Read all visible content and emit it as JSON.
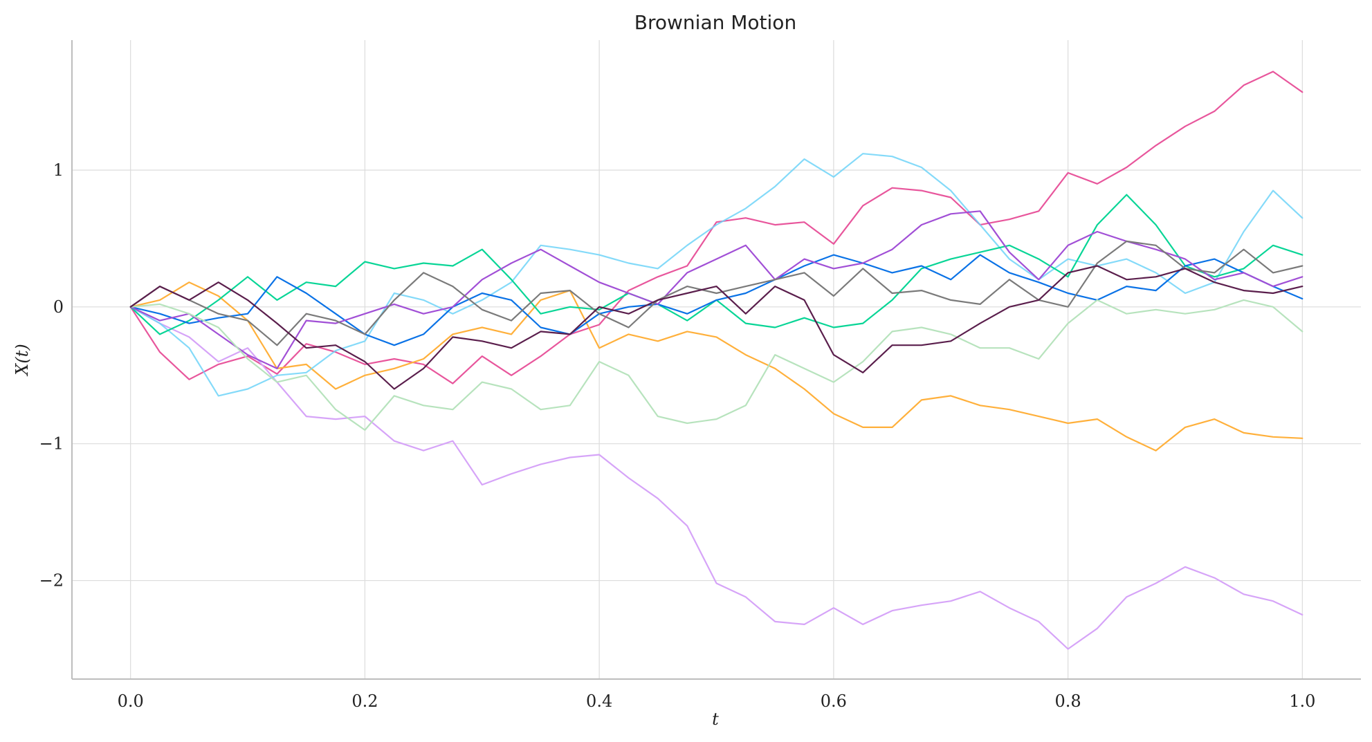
{
  "chart_data": {
    "type": "line",
    "title": "Brownian Motion",
    "xlabel": "t",
    "ylabel": "X(t)",
    "xlim": [
      -0.05,
      1.05
    ],
    "ylim": [
      -2.72,
      1.95
    ],
    "xticks": [
      0.0,
      0.2,
      0.4,
      0.6,
      0.8,
      1.0
    ],
    "xtick_labels": [
      "0.0",
      "0.2",
      "0.4",
      "0.6",
      "0.8",
      "1.0"
    ],
    "yticks": [
      1,
      0,
      -1,
      -2
    ],
    "ytick_labels": [
      "1",
      "0",
      "−1",
      "−2"
    ],
    "grid": true,
    "legend": "none",
    "series": [
      {
        "color": "#e8569c",
        "x": [
          0,
          0.025,
          0.05,
          0.075,
          0.1,
          0.125,
          0.15,
          0.175,
          0.2,
          0.225,
          0.25,
          0.275,
          0.3,
          0.325,
          0.35,
          0.375,
          0.4,
          0.425,
          0.45,
          0.475,
          0.5,
          0.525,
          0.55,
          0.575,
          0.6,
          0.625,
          0.65,
          0.675,
          0.7,
          0.725,
          0.75,
          0.775,
          0.8,
          0.825,
          0.85,
          0.875,
          0.9,
          0.925,
          0.95,
          0.975,
          1.0
        ],
        "y": [
          0,
          -0.33,
          -0.53,
          -0.42,
          -0.36,
          -0.49,
          -0.27,
          -0.33,
          -0.42,
          -0.38,
          -0.42,
          -0.56,
          -0.36,
          -0.5,
          -0.36,
          -0.2,
          -0.13,
          0.12,
          0.22,
          0.3,
          0.62,
          0.65,
          0.6,
          0.62,
          0.46,
          0.74,
          0.87,
          0.85,
          0.8,
          0.6,
          0.64,
          0.7,
          0.98,
          0.9,
          1.02,
          1.18,
          1.32,
          1.43,
          1.62,
          1.72,
          1.57
        ]
      },
      {
        "color": "#d6a4f8",
        "x": [
          0,
          0.025,
          0.05,
          0.075,
          0.1,
          0.125,
          0.15,
          0.175,
          0.2,
          0.225,
          0.25,
          0.275,
          0.3,
          0.325,
          0.35,
          0.375,
          0.4,
          0.425,
          0.45,
          0.475,
          0.5,
          0.525,
          0.55,
          0.575,
          0.6,
          0.625,
          0.65,
          0.675,
          0.7,
          0.725,
          0.75,
          0.775,
          0.8,
          0.825,
          0.85,
          0.875,
          0.9,
          0.925,
          0.95,
          0.975,
          1.0
        ],
        "y": [
          0,
          -0.12,
          -0.22,
          -0.4,
          -0.3,
          -0.55,
          -0.8,
          -0.82,
          -0.8,
          -0.98,
          -1.05,
          -0.98,
          -1.3,
          -1.22,
          -1.15,
          -1.1,
          -1.08,
          -1.25,
          -1.4,
          -1.6,
          -2.02,
          -2.12,
          -2.3,
          -2.32,
          -2.2,
          -2.32,
          -2.22,
          -2.18,
          -2.15,
          -2.08,
          -2.2,
          -2.3,
          -2.5,
          -2.35,
          -2.12,
          -2.02,
          -1.9,
          -1.98,
          -2.1,
          -2.15,
          -2.25
        ]
      },
      {
        "color": "#ffb03b",
        "x": [
          0,
          0.025,
          0.05,
          0.075,
          0.1,
          0.125,
          0.15,
          0.175,
          0.2,
          0.225,
          0.25,
          0.275,
          0.3,
          0.325,
          0.35,
          0.375,
          0.4,
          0.425,
          0.45,
          0.475,
          0.5,
          0.525,
          0.55,
          0.575,
          0.6,
          0.625,
          0.65,
          0.675,
          0.7,
          0.725,
          0.75,
          0.775,
          0.8,
          0.825,
          0.85,
          0.875,
          0.9,
          0.925,
          0.95,
          0.975,
          1.0
        ],
        "y": [
          0,
          0.05,
          0.18,
          0.08,
          -0.1,
          -0.45,
          -0.42,
          -0.6,
          -0.5,
          -0.45,
          -0.38,
          -0.2,
          -0.15,
          -0.2,
          0.05,
          0.12,
          -0.3,
          -0.2,
          -0.25,
          -0.18,
          -0.22,
          -0.35,
          -0.45,
          -0.6,
          -0.78,
          -0.88,
          -0.88,
          -0.68,
          -0.65,
          -0.72,
          -0.75,
          -0.8,
          -0.85,
          -0.82,
          -0.95,
          -1.05,
          -0.88,
          -0.82,
          -0.92,
          -0.95,
          -0.96
        ]
      },
      {
        "color": "#6ed4f8",
        "x": [
          0,
          0.025,
          0.05,
          0.075,
          0.1,
          0.125,
          0.15,
          0.175,
          0.2,
          0.225,
          0.25,
          0.275,
          0.3,
          0.325,
          0.35,
          0.375,
          0.4,
          0.425,
          0.45,
          0.475,
          0.5,
          0.525,
          0.55,
          0.575,
          0.6,
          0.625,
          0.65,
          0.675,
          0.7,
          0.725,
          0.75,
          0.775,
          0.8,
          0.825,
          0.85,
          0.875,
          0.9,
          0.925,
          0.95,
          0.975,
          1.0
        ],
        "y": [
          0,
          -0.12,
          -0.3,
          -0.65,
          -0.6,
          -0.5,
          -0.48,
          -0.32,
          -0.25,
          0.1,
          0.05,
          -0.05,
          0.05,
          0.18,
          0.45,
          0.42,
          0.38,
          0.32,
          0.28,
          0.45,
          0.6,
          0.72,
          0.88,
          1.08,
          0.95,
          1.12,
          1.1,
          1.02,
          0.85,
          0.6,
          0.35,
          0.2,
          0.35,
          0.3,
          0.35,
          0.25,
          0.1,
          0.18,
          0.55,
          0.85,
          0.65
        ],
        "opacity": 0.85
      },
      {
        "color": "#08d596",
        "x": [
          0,
          0.025,
          0.05,
          0.075,
          0.1,
          0.125,
          0.15,
          0.175,
          0.2,
          0.225,
          0.25,
          0.275,
          0.3,
          0.325,
          0.35,
          0.375,
          0.4,
          0.425,
          0.45,
          0.475,
          0.5,
          0.525,
          0.55,
          0.575,
          0.6,
          0.625,
          0.65,
          0.675,
          0.7,
          0.725,
          0.75,
          0.775,
          0.8,
          0.825,
          0.85,
          0.875,
          0.9,
          0.925,
          0.95,
          0.975,
          1.0
        ],
        "y": [
          0,
          -0.2,
          -0.1,
          0.05,
          0.22,
          0.05,
          0.18,
          0.15,
          0.33,
          0.28,
          0.32,
          0.3,
          0.42,
          0.2,
          -0.05,
          0.0,
          -0.02,
          0.1,
          0.02,
          -0.1,
          0.05,
          -0.12,
          -0.15,
          -0.08,
          -0.15,
          -0.12,
          0.05,
          0.28,
          0.35,
          0.4,
          0.45,
          0.35,
          0.22,
          0.6,
          0.82,
          0.6,
          0.3,
          0.22,
          0.28,
          0.45,
          0.38
        ]
      },
      {
        "color": "#0a72e6",
        "x": [
          0,
          0.025,
          0.05,
          0.075,
          0.1,
          0.125,
          0.15,
          0.175,
          0.2,
          0.225,
          0.25,
          0.275,
          0.3,
          0.325,
          0.35,
          0.375,
          0.4,
          0.425,
          0.45,
          0.475,
          0.5,
          0.525,
          0.55,
          0.575,
          0.6,
          0.625,
          0.65,
          0.675,
          0.7,
          0.725,
          0.75,
          0.775,
          0.8,
          0.825,
          0.85,
          0.875,
          0.9,
          0.925,
          0.95,
          0.975,
          1.0
        ],
        "y": [
          0,
          -0.05,
          -0.12,
          -0.08,
          -0.05,
          0.22,
          0.1,
          -0.05,
          -0.2,
          -0.28,
          -0.2,
          0.0,
          0.1,
          0.05,
          -0.15,
          -0.2,
          -0.05,
          0.0,
          0.02,
          -0.05,
          0.05,
          0.1,
          0.2,
          0.3,
          0.38,
          0.32,
          0.25,
          0.3,
          0.2,
          0.38,
          0.25,
          0.18,
          0.1,
          0.05,
          0.15,
          0.12,
          0.3,
          0.35,
          0.25,
          0.15,
          0.06
        ]
      },
      {
        "color": "#a14fd6",
        "x": [
          0,
          0.025,
          0.05,
          0.075,
          0.1,
          0.125,
          0.15,
          0.175,
          0.2,
          0.225,
          0.25,
          0.275,
          0.3,
          0.325,
          0.35,
          0.375,
          0.4,
          0.425,
          0.45,
          0.475,
          0.5,
          0.525,
          0.55,
          0.575,
          0.6,
          0.625,
          0.65,
          0.675,
          0.7,
          0.725,
          0.75,
          0.775,
          0.8,
          0.825,
          0.85,
          0.875,
          0.9,
          0.925,
          0.95,
          0.975,
          1.0
        ],
        "y": [
          0,
          -0.1,
          -0.05,
          -0.2,
          -0.35,
          -0.45,
          -0.1,
          -0.12,
          -0.05,
          0.02,
          -0.05,
          0.0,
          0.2,
          0.32,
          0.42,
          0.3,
          0.18,
          0.1,
          0.02,
          0.25,
          0.35,
          0.45,
          0.2,
          0.35,
          0.28,
          0.32,
          0.42,
          0.6,
          0.68,
          0.7,
          0.4,
          0.2,
          0.45,
          0.55,
          0.48,
          0.42,
          0.35,
          0.2,
          0.25,
          0.15,
          0.22
        ]
      },
      {
        "color": "#b7e3bd",
        "x": [
          0,
          0.025,
          0.05,
          0.075,
          0.1,
          0.125,
          0.15,
          0.175,
          0.2,
          0.225,
          0.25,
          0.275,
          0.3,
          0.325,
          0.35,
          0.375,
          0.4,
          0.425,
          0.45,
          0.475,
          0.5,
          0.525,
          0.55,
          0.575,
          0.6,
          0.625,
          0.65,
          0.675,
          0.7,
          0.725,
          0.75,
          0.775,
          0.8,
          0.825,
          0.85,
          0.875,
          0.9,
          0.925,
          0.95,
          0.975,
          1.0
        ],
        "y": [
          0,
          0.02,
          -0.05,
          -0.15,
          -0.38,
          -0.55,
          -0.5,
          -0.75,
          -0.9,
          -0.65,
          -0.72,
          -0.75,
          -0.55,
          -0.6,
          -0.75,
          -0.72,
          -0.4,
          -0.5,
          -0.8,
          -0.85,
          -0.82,
          -0.72,
          -0.35,
          -0.45,
          -0.55,
          -0.4,
          -0.18,
          -0.15,
          -0.2,
          -0.3,
          -0.3,
          -0.38,
          -0.12,
          0.05,
          -0.05,
          -0.02,
          -0.05,
          -0.02,
          0.05,
          0.0,
          -0.18
        ]
      },
      {
        "color": "#7a7a7a",
        "x": [
          0,
          0.025,
          0.05,
          0.075,
          0.1,
          0.125,
          0.15,
          0.175,
          0.2,
          0.225,
          0.25,
          0.275,
          0.3,
          0.325,
          0.35,
          0.375,
          0.4,
          0.425,
          0.45,
          0.475,
          0.5,
          0.525,
          0.55,
          0.575,
          0.6,
          0.625,
          0.65,
          0.675,
          0.7,
          0.725,
          0.75,
          0.775,
          0.8,
          0.825,
          0.85,
          0.875,
          0.9,
          0.925,
          0.95,
          0.975,
          1.0
        ],
        "y": [
          0,
          0.15,
          0.05,
          -0.05,
          -0.1,
          -0.28,
          -0.05,
          -0.1,
          -0.2,
          0.05,
          0.25,
          0.15,
          -0.02,
          -0.1,
          0.1,
          0.12,
          -0.05,
          -0.15,
          0.05,
          0.15,
          0.1,
          0.15,
          0.2,
          0.25,
          0.08,
          0.28,
          0.1,
          0.12,
          0.05,
          0.02,
          0.2,
          0.05,
          0.0,
          0.32,
          0.48,
          0.45,
          0.28,
          0.25,
          0.42,
          0.25,
          0.3
        ]
      },
      {
        "color": "#5a1e4c",
        "x": [
          0,
          0.025,
          0.05,
          0.075,
          0.1,
          0.125,
          0.15,
          0.175,
          0.2,
          0.225,
          0.25,
          0.275,
          0.3,
          0.325,
          0.35,
          0.375,
          0.4,
          0.425,
          0.45,
          0.475,
          0.5,
          0.525,
          0.55,
          0.575,
          0.6,
          0.625,
          0.65,
          0.675,
          0.7,
          0.725,
          0.75,
          0.775,
          0.8,
          0.825,
          0.85,
          0.875,
          0.9,
          0.925,
          0.95,
          0.975,
          1.0
        ],
        "y": [
          0,
          0.15,
          0.05,
          0.18,
          0.05,
          -0.12,
          -0.3,
          -0.28,
          -0.4,
          -0.6,
          -0.45,
          -0.22,
          -0.25,
          -0.3,
          -0.18,
          -0.2,
          0.0,
          -0.05,
          0.05,
          0.1,
          0.15,
          -0.05,
          0.15,
          0.05,
          -0.35,
          -0.48,
          -0.28,
          -0.28,
          -0.25,
          -0.12,
          0.0,
          0.05,
          0.25,
          0.3,
          0.2,
          0.22,
          0.28,
          0.18,
          0.12,
          0.1,
          0.15
        ]
      }
    ]
  }
}
